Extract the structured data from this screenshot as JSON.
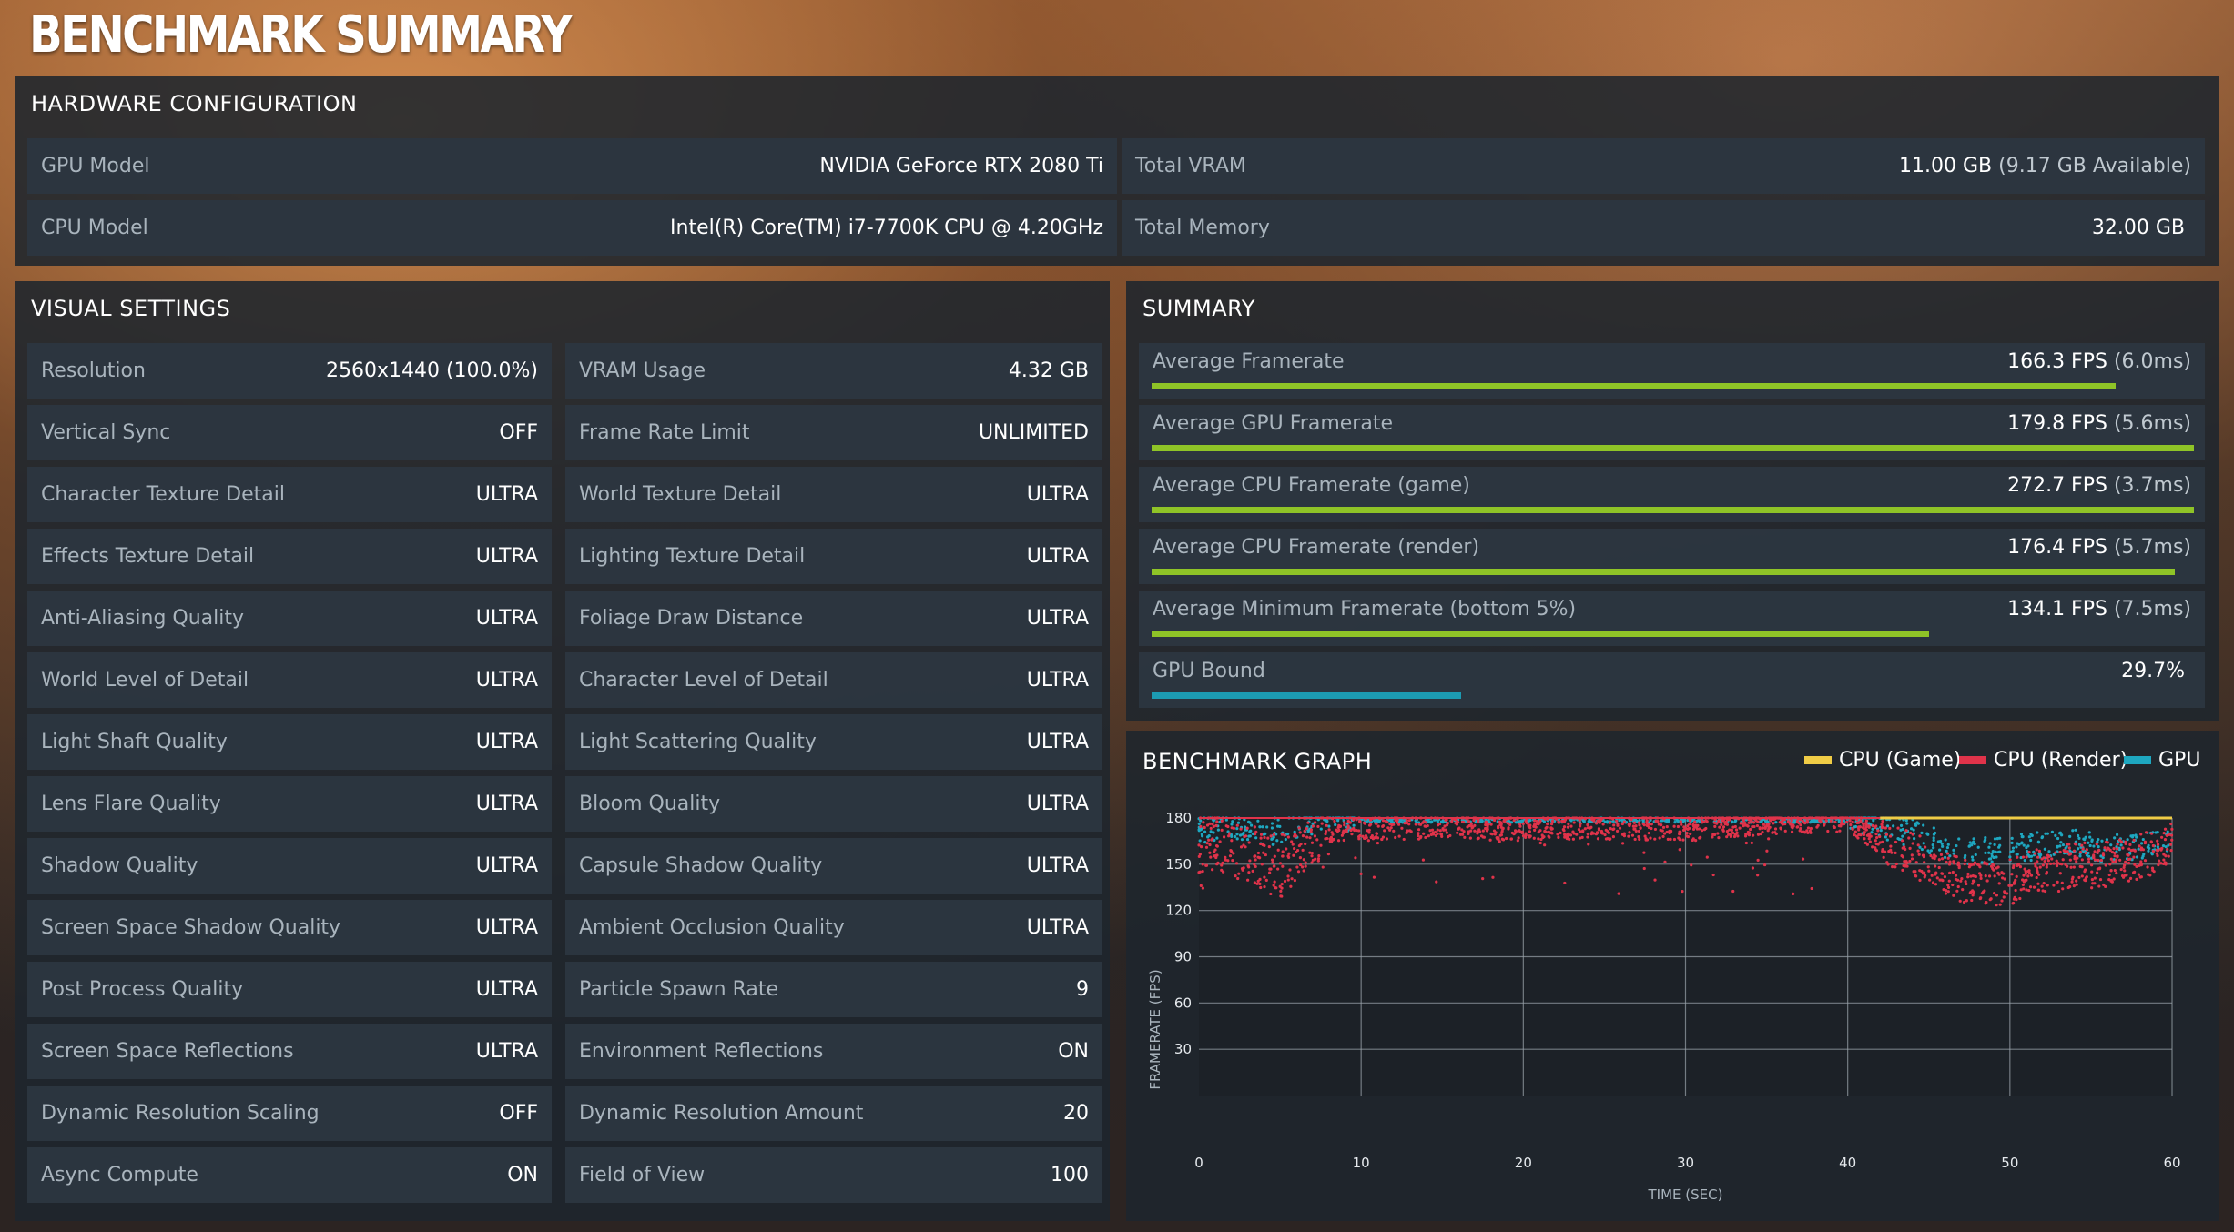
{
  "title": "BENCHMARK SUMMARY",
  "hardware": {
    "header": "HARDWARE CONFIGURATION",
    "left": [
      {
        "label": "GPU Model",
        "value": "NVIDIA GeForce RTX 2080 Ti"
      },
      {
        "label": "CPU Model",
        "value": "Intel(R) Core(TM) i7-7700K CPU @ 4.20GHz"
      }
    ],
    "right": [
      {
        "label": "Total VRAM",
        "value": "11.00 GB",
        "sub": "(9.17 GB Available)"
      },
      {
        "label": "Total Memory",
        "value": "32.00 GB",
        "sub": ""
      }
    ]
  },
  "visual": {
    "header": "VISUAL SETTINGS",
    "left": [
      {
        "label": "Resolution",
        "value": "2560x1440 (100.0%)"
      },
      {
        "label": "Vertical Sync",
        "value": "OFF"
      },
      {
        "label": "Character Texture Detail",
        "value": "ULTRA"
      },
      {
        "label": "Effects Texture Detail",
        "value": "ULTRA"
      },
      {
        "label": "Anti-Aliasing Quality",
        "value": "ULTRA"
      },
      {
        "label": "World Level of Detail",
        "value": "ULTRA"
      },
      {
        "label": "Light Shaft Quality",
        "value": "ULTRA"
      },
      {
        "label": "Lens Flare Quality",
        "value": "ULTRA"
      },
      {
        "label": "Shadow Quality",
        "value": "ULTRA"
      },
      {
        "label": "Screen Space Shadow Quality",
        "value": "ULTRA"
      },
      {
        "label": "Post Process Quality",
        "value": "ULTRA"
      },
      {
        "label": "Screen Space Reflections",
        "value": "ULTRA"
      },
      {
        "label": "Dynamic Resolution Scaling",
        "value": "OFF"
      },
      {
        "label": "Async Compute",
        "value": "ON"
      }
    ],
    "right": [
      {
        "label": "VRAM Usage",
        "value": "4.32 GB"
      },
      {
        "label": "Frame Rate Limit",
        "value": "UNLIMITED"
      },
      {
        "label": "World Texture Detail",
        "value": "ULTRA"
      },
      {
        "label": "Lighting Texture Detail",
        "value": "ULTRA"
      },
      {
        "label": "Foliage Draw Distance",
        "value": "ULTRA"
      },
      {
        "label": "Character Level of Detail",
        "value": "ULTRA"
      },
      {
        "label": "Light Scattering Quality",
        "value": "ULTRA"
      },
      {
        "label": "Bloom Quality",
        "value": "ULTRA"
      },
      {
        "label": "Capsule Shadow Quality",
        "value": "ULTRA"
      },
      {
        "label": "Ambient Occlusion Quality",
        "value": "ULTRA"
      },
      {
        "label": "Particle Spawn Rate",
        "value": "9"
      },
      {
        "label": "Environment Reflections",
        "value": "ON"
      },
      {
        "label": "Dynamic Resolution Amount",
        "value": "20"
      },
      {
        "label": "Field of View",
        "value": "100"
      }
    ]
  },
  "summary": {
    "header": "SUMMARY",
    "rows": [
      {
        "label": "Average Framerate",
        "value": "166.3 FPS",
        "sub": "(6.0ms)",
        "fraction": 0.925,
        "color": "#8fc427"
      },
      {
        "label": "Average GPU Framerate",
        "value": "179.8 FPS",
        "sub": "(5.6ms)",
        "fraction": 1.0,
        "color": "#8fc427"
      },
      {
        "label": "Average CPU Framerate (game)",
        "value": "272.7 FPS",
        "sub": "(3.7ms)",
        "fraction": 1.0,
        "color": "#8fc427"
      },
      {
        "label": "Average CPU Framerate (render)",
        "value": "176.4 FPS",
        "sub": "(5.7ms)",
        "fraction": 0.982,
        "color": "#8fc427"
      },
      {
        "label": "Average Minimum Framerate (bottom 5%)",
        "value": "134.1 FPS",
        "sub": "(7.5ms)",
        "fraction": 0.746,
        "color": "#8fc427"
      },
      {
        "label": "GPU Bound",
        "value": "29.7%",
        "sub": "",
        "fraction": 0.297,
        "color": "#1c9bb2"
      }
    ]
  },
  "graph": {
    "header": "BENCHMARK GRAPH",
    "legend": [
      {
        "name": "CPU (Game)",
        "color": "#f0cc46"
      },
      {
        "name": "CPU (Render)",
        "color": "#e0334a"
      },
      {
        "name": "GPU",
        "color": "#1ea7c0"
      }
    ]
  },
  "chart_data": {
    "type": "scatter",
    "title": "BENCHMARK GRAPH",
    "xlabel": "TIME (SEC)",
    "ylabel": "FRAMERATE (FPS)",
    "xlim": [
      0,
      60
    ],
    "ylim": [
      0,
      180
    ],
    "xticks": [
      0,
      10,
      20,
      30,
      40,
      50,
      60
    ],
    "yticks": [
      30,
      60,
      90,
      120,
      150,
      180
    ],
    "grid": true,
    "legend_position": "top-right",
    "series": [
      {
        "name": "CPU (Game)",
        "color": "#f0cc46",
        "x": [
          0,
          60
        ],
        "y": [
          180,
          180
        ]
      },
      {
        "name": "CPU (Render)",
        "color": "#e0334a",
        "x": [
          1,
          3,
          5,
          7,
          10,
          15,
          20,
          25,
          30,
          35,
          40,
          42,
          44,
          46,
          48,
          50,
          52,
          54,
          56,
          58,
          60
        ],
        "y": [
          168,
          158,
          150,
          172,
          174,
          175,
          174,
          175,
          174,
          178,
          180,
          166,
          158,
          146,
          138,
          140,
          148,
          150,
          152,
          156,
          166
        ]
      },
      {
        "name": "GPU",
        "color": "#1ea7c0",
        "x": [
          0,
          2,
          4,
          6,
          8,
          10,
          20,
          30,
          40,
          42,
          44,
          46,
          48,
          50,
          52,
          54,
          56,
          58,
          60
        ],
        "y": [
          172,
          175,
          170,
          176,
          180,
          180,
          180,
          180,
          180,
          176,
          170,
          162,
          158,
          160,
          162,
          164,
          160,
          162,
          168
        ]
      }
    ]
  }
}
